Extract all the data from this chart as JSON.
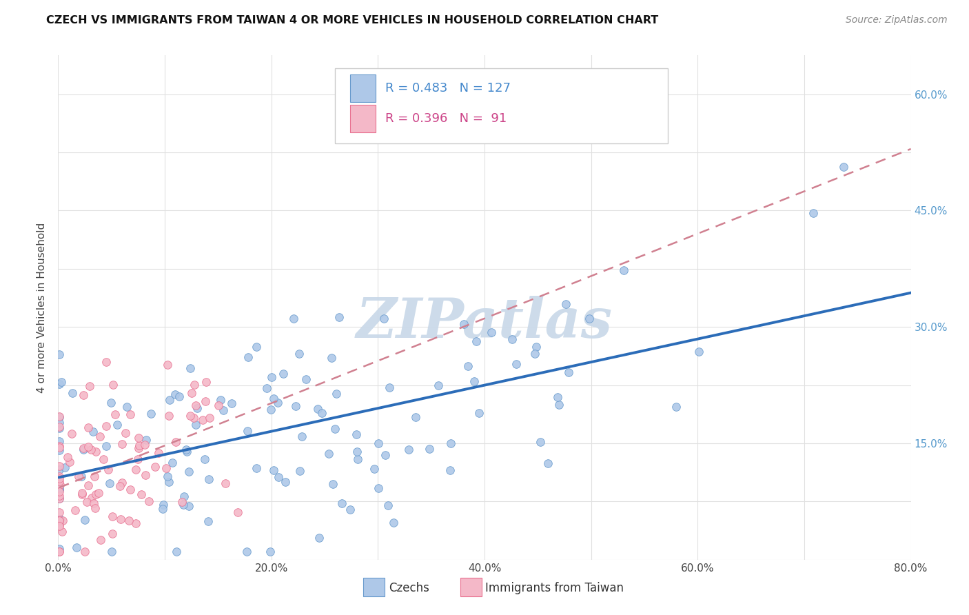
{
  "title": "CZECH VS IMMIGRANTS FROM TAIWAN 4 OR MORE VEHICLES IN HOUSEHOLD CORRELATION CHART",
  "source_text": "Source: ZipAtlas.com",
  "ylabel": "4 or more Vehicles in Household",
  "xlim": [
    0.0,
    0.8
  ],
  "ylim": [
    0.0,
    0.65
  ],
  "xtick_vals": [
    0.0,
    0.1,
    0.2,
    0.3,
    0.4,
    0.5,
    0.6,
    0.7,
    0.8
  ],
  "xticklabels": [
    "0.0%",
    "",
    "20.0%",
    "",
    "40.0%",
    "",
    "60.0%",
    "",
    "80.0%"
  ],
  "ytick_vals": [
    0.0,
    0.075,
    0.15,
    0.225,
    0.3,
    0.375,
    0.45,
    0.525,
    0.6
  ],
  "yticklabels_right": [
    "",
    "",
    "15.0%",
    "",
    "30.0%",
    "",
    "45.0%",
    "",
    "60.0%"
  ],
  "czech_R": 0.483,
  "czech_N": 127,
  "taiwan_R": 0.396,
  "taiwan_N": 91,
  "czech_color": "#aec8e8",
  "czech_edge_color": "#6699cc",
  "taiwan_color": "#f4b8c8",
  "taiwan_edge_color": "#e87090",
  "czech_line_color": "#2b6cb8",
  "taiwan_line_color": "#d08090",
  "watermark": "ZIPatlas",
  "watermark_color": "#c8d8e8",
  "legend_czech_label": "Czechs",
  "legend_taiwan_label": "Immigrants from Taiwan",
  "legend_R_color_czech": "#4488cc",
  "legend_R_color_taiwan": "#cc4488",
  "grid_color": "#e0e0e0"
}
